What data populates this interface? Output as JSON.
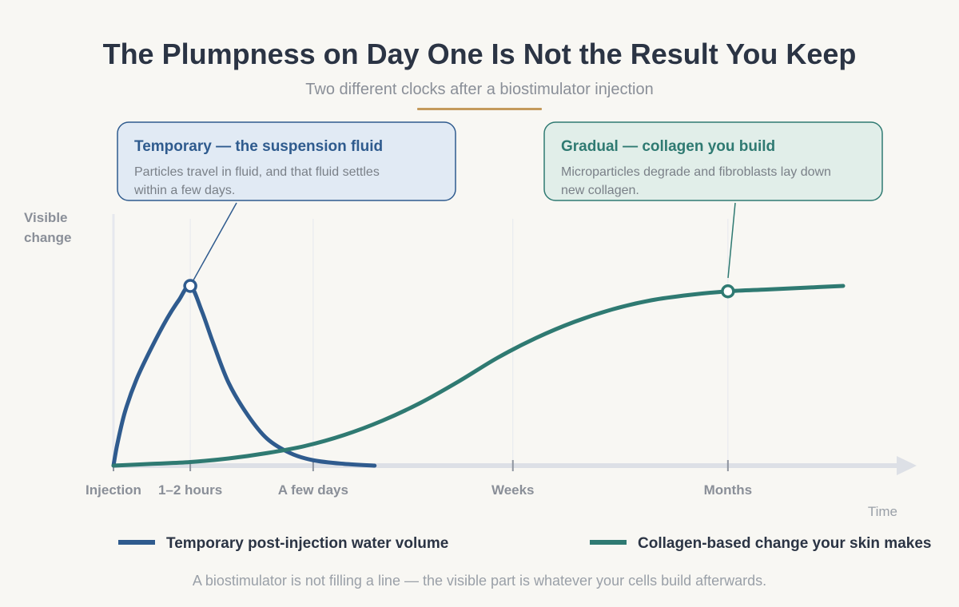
{
  "title": "The Plumpness on Day One Is Not the Result You Keep",
  "subtitle": "Two different clocks after a biostimulator injection",
  "callouts": {
    "temporary": {
      "title": "Temporary — the suspension fluid",
      "lines": [
        "Particles travel in fluid, and that fluid settles",
        "within a few days."
      ]
    },
    "gradual": {
      "title": "Gradual — collagen you build",
      "lines": [
        "Microparticles degrade and fibroblasts lay down",
        "new collagen."
      ]
    }
  },
  "legend": {
    "temporary": "Temporary post-injection water volume",
    "collagen": "Collagen-based change your skin makes"
  },
  "footer": "A biostimulator is not filling a line — the visible part is whatever your cells build afterwards.",
  "colors": {
    "temporary": "#2f5b8e",
    "collagen": "#2f7a72",
    "accent": "#c49a5c",
    "axis": "#dde0e6",
    "grid": "#e6e8ee",
    "temporary_box_fill": "#e1eaf4",
    "collagen_box_fill": "#e1eee9"
  },
  "chart_data": {
    "type": "line",
    "xlabel": "Time",
    "ylabel": "Visible change",
    "x_ticks": [
      {
        "x": 0,
        "label": "Injection"
      },
      {
        "x": 1,
        "label": "1–2 hours"
      },
      {
        "x": 2.6,
        "label": "A few days"
      },
      {
        "x": 5.2,
        "label": "Weeks"
      },
      {
        "x": 8,
        "label": "Months"
      }
    ],
    "xlim": [
      0,
      10.5
    ],
    "ylim": [
      0,
      1.25
    ],
    "series": [
      {
        "name": "Temporary post-injection water volume",
        "color": "#2f5b8e",
        "x": [
          0,
          0.05,
          0.15,
          0.3,
          0.5,
          0.7,
          0.85,
          1.0,
          1.15,
          1.3,
          1.5,
          1.75,
          2.0,
          2.3,
          2.6,
          3.0,
          3.4
        ],
        "y": [
          0,
          0.12,
          0.3,
          0.48,
          0.66,
          0.82,
          0.92,
          1.0,
          0.86,
          0.68,
          0.46,
          0.28,
          0.15,
          0.07,
          0.03,
          0.01,
          0.0
        ],
        "marker_x": 1.0
      },
      {
        "name": "Collagen-based change your skin makes",
        "color": "#2f7a72",
        "x": [
          0,
          0.5,
          1,
          1.5,
          2,
          2.5,
          3,
          3.5,
          4,
          4.5,
          5,
          5.5,
          6,
          6.5,
          7,
          7.5,
          8,
          8.5,
          9,
          9.5
        ],
        "y": [
          0,
          0.01,
          0.02,
          0.04,
          0.07,
          0.11,
          0.17,
          0.25,
          0.35,
          0.47,
          0.6,
          0.71,
          0.8,
          0.87,
          0.92,
          0.95,
          0.97,
          0.98,
          0.99,
          1.0
        ],
        "marker_x": 8
      }
    ],
    "grid": true
  }
}
